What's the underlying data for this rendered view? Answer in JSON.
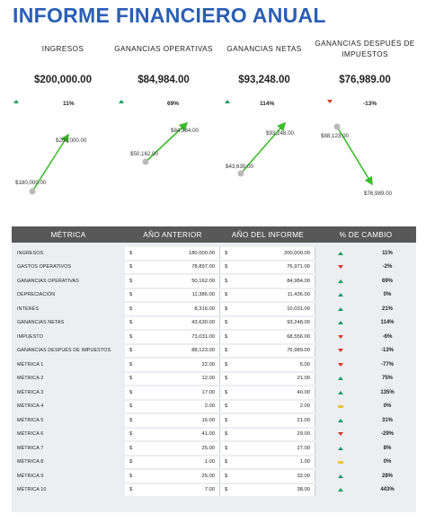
{
  "title": "INFORME FINANCIERO ANUAL",
  "kpis": [
    {
      "label": "INGRESOS",
      "value": "$200,000.00",
      "change": "11%",
      "trend": "up",
      "prev_label": "$180,000.00",
      "curr_label": "$200,000.00"
    },
    {
      "label": "GANANCIAS OPERATIVAS",
      "value": "$84,984.00",
      "change": "69%",
      "trend": "up",
      "prev_label": "$50,162.00",
      "curr_label": "$84,984.00"
    },
    {
      "label": "GANANCIAS NETAS",
      "value": "$93,248.00",
      "change": "114%",
      "trend": "up",
      "prev_label": "$43,630.00",
      "curr_label": "$93,248.00"
    },
    {
      "label": "GANANCIAS DESPUÉS DE IMPUESTOS",
      "value": "$76,989.00",
      "change": "-13%",
      "trend": "down",
      "prev_label": "$88,123.00",
      "curr_label": "$76,989.00"
    }
  ],
  "table": {
    "headers": [
      "MÉTRICA",
      "AÑO ANTERIOR",
      "AÑO DEL INFORME",
      "% DE CAMBIO"
    ],
    "currency": "$",
    "rows": [
      {
        "name": "INGRESOS",
        "prev": "180,000.00",
        "curr": "200,000.00",
        "trend": "up",
        "pct": "11%"
      },
      {
        "name": "GASTOS OPERATIVOS",
        "prev": "78,897.00",
        "curr": "76,971.00",
        "trend": "down",
        "pct": "-2%"
      },
      {
        "name": "GANANCIAS OPERATIVAS",
        "prev": "50,162.00",
        "curr": "84,984.00",
        "trend": "up",
        "pct": "69%"
      },
      {
        "name": "DEPRECIACIÓN",
        "prev": "11,386.00",
        "curr": "11,436.00",
        "trend": "up",
        "pct": "0%"
      },
      {
        "name": "INTERÉS",
        "prev": "8,316.00",
        "curr": "10,031.00",
        "trend": "up",
        "pct": "21%"
      },
      {
        "name": "GANANCIAS NETAS",
        "prev": "43,630.00",
        "curr": "93,248.00",
        "trend": "up",
        "pct": "114%"
      },
      {
        "name": "IMPUESTO",
        "prev": "73,031.00",
        "curr": "68,556.00",
        "trend": "down",
        "pct": "-6%"
      },
      {
        "name": "GANANCIAS DESPUÉS DE IMPUESTOS",
        "prev": "88,123.00",
        "curr": "76,989.00",
        "trend": "down",
        "pct": "-13%"
      },
      {
        "name": "MÉTRICA 1",
        "prev": "22.00",
        "curr": "5.00",
        "trend": "down",
        "pct": "-77%"
      },
      {
        "name": "MÉTRICA 2",
        "prev": "12.00",
        "curr": "21.00",
        "trend": "up",
        "pct": "75%"
      },
      {
        "name": "MÉTRICA 3",
        "prev": "17.00",
        "curr": "40.00",
        "trend": "up",
        "pct": "135%"
      },
      {
        "name": "MÉTRICA 4",
        "prev": "2.00",
        "curr": "2.00",
        "trend": "flat",
        "pct": "0%"
      },
      {
        "name": "MÉTRICA 5",
        "prev": "16.00",
        "curr": "21.00",
        "trend": "up",
        "pct": "31%"
      },
      {
        "name": "MÉTRICA 6",
        "prev": "41.00",
        "curr": "29.00",
        "trend": "down",
        "pct": "-29%"
      },
      {
        "name": "MÉTRICA 7",
        "prev": "25.00",
        "curr": "27.00",
        "trend": "up",
        "pct": "8%"
      },
      {
        "name": "MÉTRICA 8",
        "prev": "1.00",
        "curr": "1.00",
        "trend": "flat",
        "pct": "0%"
      },
      {
        "name": "MÉTRICA 9",
        "prev": "25.00",
        "curr": "32.00",
        "trend": "up",
        "pct": "28%"
      },
      {
        "name": "MÉTRICA 10",
        "prev": "7.00",
        "curr": "38.00",
        "trend": "up",
        "pct": "443%"
      }
    ]
  },
  "colors": {
    "title": "#2b5fb4",
    "up": "#1e9a63",
    "down": "#d33a25",
    "flat": "#e8c43a",
    "line_up": "#3cbc2c",
    "line_down": "#3cbc2c",
    "header_bg": "#585858"
  }
}
